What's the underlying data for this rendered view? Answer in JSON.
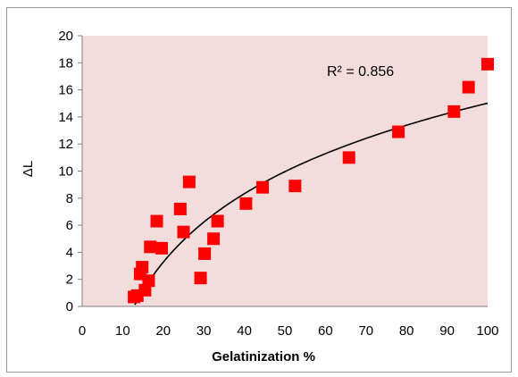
{
  "chart_data": {
    "type": "scatter",
    "xlabel": "Gelatinization %",
    "ylabel": "ΔL",
    "xlim": [
      0,
      100
    ],
    "ylim": [
      0,
      20
    ],
    "x_ticks": [
      "0",
      "10",
      "20",
      "30",
      "40",
      "50",
      "60",
      "70",
      "80",
      "90",
      "100"
    ],
    "y_ticks": [
      "0",
      "2",
      "4",
      "6",
      "8",
      "10",
      "12",
      "14",
      "16",
      "18",
      "20"
    ],
    "grid": false,
    "legend": "none",
    "annotation": "R² = 0.856",
    "colors": {
      "plot_background": "#f2dcdc",
      "marker": "#ff0000",
      "trendline": "#000000"
    },
    "series": [
      {
        "marker": "square",
        "points": [
          {
            "x": 12.8,
            "y": 0.7
          },
          {
            "x": 13.6,
            "y": 0.8
          },
          {
            "x": 15.5,
            "y": 1.2
          },
          {
            "x": 16.4,
            "y": 1.9
          },
          {
            "x": 14.3,
            "y": 2.4
          },
          {
            "x": 14.8,
            "y": 2.9
          },
          {
            "x": 16.8,
            "y": 4.4
          },
          {
            "x": 19.6,
            "y": 4.3
          },
          {
            "x": 18.4,
            "y": 6.3
          },
          {
            "x": 24.2,
            "y": 7.2
          },
          {
            "x": 25.0,
            "y": 5.5
          },
          {
            "x": 26.4,
            "y": 9.2
          },
          {
            "x": 29.2,
            "y": 2.1
          },
          {
            "x": 30.2,
            "y": 3.9
          },
          {
            "x": 32.4,
            "y": 5.0
          },
          {
            "x": 33.4,
            "y": 6.3
          },
          {
            "x": 40.4,
            "y": 7.6
          },
          {
            "x": 44.5,
            "y": 8.8
          },
          {
            "x": 52.5,
            "y": 8.9
          },
          {
            "x": 65.8,
            "y": 11.0
          },
          {
            "x": 78.0,
            "y": 12.9
          },
          {
            "x": 91.7,
            "y": 14.4
          },
          {
            "x": 95.3,
            "y": 16.2
          },
          {
            "x": 100.0,
            "y": 17.9
          }
        ]
      }
    ],
    "trendline": {
      "type": "logarithmic",
      "a": 7.3,
      "b": -18.6,
      "x_start": 13
    }
  }
}
